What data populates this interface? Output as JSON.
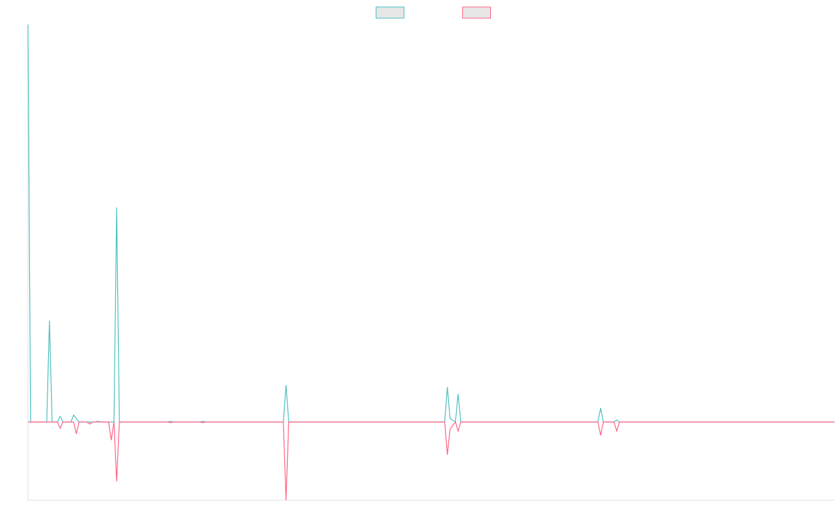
{
  "chart_data": {
    "type": "line",
    "x": [
      0,
      1,
      7,
      8,
      9,
      11,
      12,
      13,
      16,
      17,
      18,
      19,
      22,
      23,
      24,
      25,
      26,
      27,
      30,
      31,
      32,
      33,
      34,
      52,
      53,
      54,
      64,
      65,
      66,
      95,
      96,
      97,
      155,
      156,
      157,
      159,
      160,
      161,
      212,
      213,
      214,
      218,
      219,
      220,
      300
    ],
    "series": [
      {
        "color": "#4bc0c0",
        "values": [
          569,
          0,
          0,
          145,
          0,
          0,
          8,
          0,
          0,
          10,
          5,
          0,
          0,
          0,
          0,
          0,
          1,
          0,
          0,
          0,
          0,
          307,
          0,
          0,
          1,
          0,
          0,
          1,
          0,
          0,
          53,
          0,
          0,
          50,
          5,
          0,
          40,
          0,
          0,
          20,
          0,
          0,
          3,
          0,
          0
        ]
      },
      {
        "color": "#ff6384",
        "values": [
          0,
          0,
          0,
          0,
          0,
          0,
          -9,
          0,
          0,
          0,
          -17,
          0,
          0,
          -3,
          0,
          0,
          0,
          0,
          0,
          -26,
          0,
          -85,
          0,
          0,
          -1,
          0,
          0,
          -1,
          0,
          0,
          -112,
          0,
          0,
          -47,
          -10,
          0,
          -13,
          0,
          0,
          -19,
          0,
          0,
          -13,
          0,
          0
        ]
      }
    ],
    "xlim": [
      0,
      300
    ],
    "ylim": [
      -112,
      569
    ],
    "legend": "top"
  }
}
